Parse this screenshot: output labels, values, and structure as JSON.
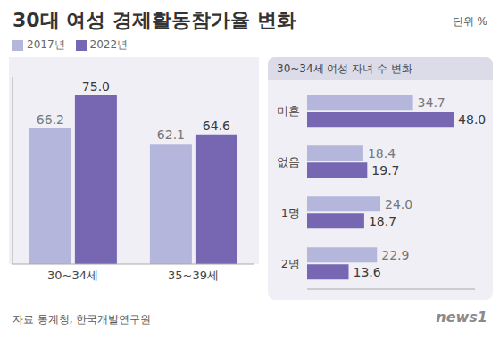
{
  "chart_data": [
    {
      "type": "bar",
      "title": "30대 여성 경제활동참가율 변화",
      "annotations": [
        "단위 %",
        "자료 통계청, 한국개발연구원",
        "news1"
      ],
      "categories": [
        "30~34세",
        "35~39세"
      ],
      "series": [
        {
          "name": "2017년",
          "color": "#b4b6dc",
          "values": [
            66.2,
            62.1
          ],
          "value_labels": [
            "66.2",
            "62.1"
          ]
        },
        {
          "name": "2022년",
          "color": "#7767b3",
          "values": [
            75.0,
            64.6
          ],
          "value_labels": [
            "75.0",
            "64.6"
          ]
        }
      ],
      "ylim": [
        30,
        80
      ],
      "yticks": [],
      "tick_labels": "x",
      "data_labels": true,
      "grid": false,
      "legend": "top-left"
    },
    {
      "type": "bar",
      "orientation": "horizontal",
      "title": "30~34세 여성 자녀 수 변화",
      "categories": [
        "미혼",
        "없음",
        "1명",
        "2명"
      ],
      "series": [
        {
          "name": "2017년",
          "color": "#b4b6dc",
          "values": [
            34.7,
            18.4,
            24.0,
            22.9
          ],
          "value_labels": [
            "34.7",
            "18.4",
            "24.0",
            "22.9"
          ]
        },
        {
          "name": "2022년",
          "color": "#7767b3",
          "values": [
            48.0,
            19.7,
            18.7,
            13.6
          ],
          "value_labels": [
            "48.0",
            "19.7",
            "18.7",
            "13.6"
          ]
        }
      ],
      "xlim": [
        0,
        55
      ],
      "xticks": [],
      "tick_labels": "y",
      "data_labels": true,
      "grid": false
    }
  ]
}
